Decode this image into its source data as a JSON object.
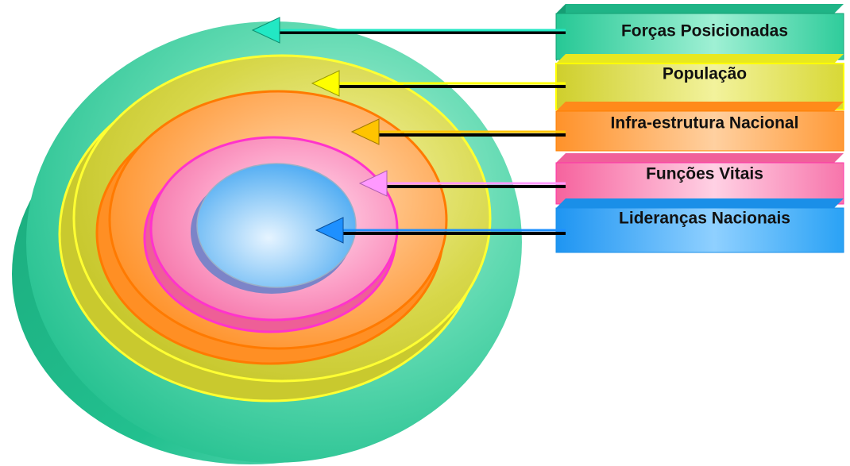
{
  "rings": [
    {
      "label": "Forças Posicionadas",
      "color": "#2ecf9e",
      "arrow_color": "#22e8c4"
    },
    {
      "label": "População",
      "color": "#d9d92a",
      "arrow_color": "#ffff00"
    },
    {
      "label": "Infra-estrutura Nacional",
      "color": "#ff9a2e",
      "arrow_color": "#ffc400"
    },
    {
      "label": "Funções Vitais",
      "color": "#f76aa4",
      "arrow_color": "#ff99ff"
    },
    {
      "label": "Lideranças Nacionais",
      "color": "#2aa2f5",
      "arrow_color": "#1e90ff"
    }
  ]
}
